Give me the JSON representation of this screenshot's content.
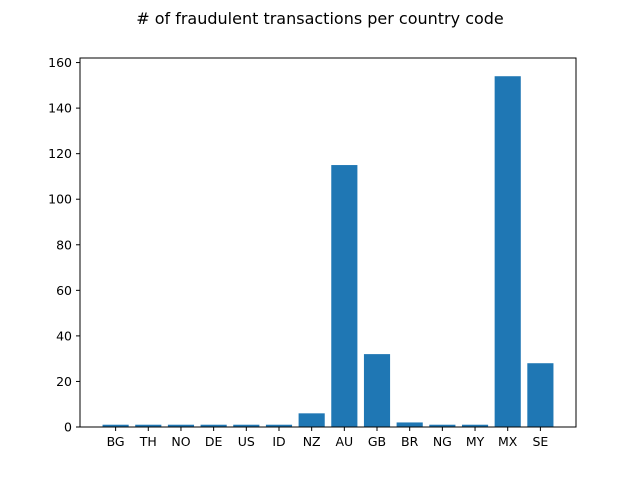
{
  "chart_data": {
    "type": "bar",
    "title": "# of fraudulent transactions per country code",
    "xlabel": "",
    "ylabel": "",
    "categories": [
      "BG",
      "TH",
      "NO",
      "DE",
      "US",
      "ID",
      "NZ",
      "AU",
      "GB",
      "BR",
      "NG",
      "MY",
      "MX",
      "SE"
    ],
    "values": [
      1,
      1,
      1,
      1,
      1,
      1,
      6,
      115,
      32,
      2,
      1,
      1,
      154,
      28
    ],
    "ylim": [
      0,
      162
    ],
    "yticks": [
      0,
      20,
      40,
      60,
      80,
      100,
      120,
      140,
      160
    ],
    "grid": false,
    "legend": "none",
    "bar_color": "#1f77b4"
  }
}
